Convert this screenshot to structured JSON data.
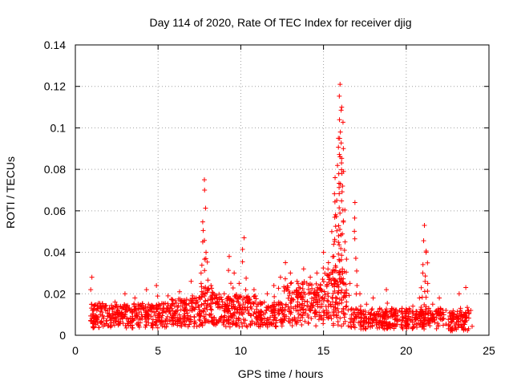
{
  "chart_data": {
    "type": "scatter",
    "title": "Day 114 of 2020, Rate Of TEC Index for receiver djig",
    "xlabel": "GPS time / hours",
    "ylabel": "ROTI / TECUs",
    "xlim": [
      0,
      25
    ],
    "ylim": [
      0,
      0.14
    ],
    "x_ticks": [
      0,
      5,
      10,
      15,
      20,
      25
    ],
    "x_tick_labels": [
      "0",
      "5",
      "10",
      "15",
      "20",
      "25"
    ],
    "y_ticks": [
      0,
      0.02,
      0.04,
      0.06,
      0.08,
      0.1,
      0.12,
      0.14
    ],
    "y_tick_labels": [
      "0",
      "0.02",
      "0.04",
      "0.06",
      "0.08",
      "0.1",
      "0.12",
      "0.14"
    ],
    "grid": true,
    "marker": "+",
    "series": [
      {
        "name": "ROTI",
        "color": "#ff0000",
        "x": [
          1.0,
          1.1,
          1.3,
          1.5,
          1.8,
          2.1,
          2.4,
          2.8,
          3.0,
          3.3,
          3.6,
          4.0,
          4.3,
          4.6,
          4.9,
          5.3,
          5.6,
          6.0,
          6.3,
          6.6,
          7.0,
          7.3,
          7.6,
          7.7,
          7.8,
          7.9,
          8.2,
          8.6,
          9.0,
          9.3,
          9.6,
          9.9,
          10.2,
          10.5,
          10.8,
          11.2,
          11.6,
          12.0,
          12.4,
          12.7,
          13.0,
          13.4,
          13.8,
          14.2,
          14.6,
          15.0,
          15.3,
          15.5,
          15.7,
          15.8,
          15.9,
          16.0,
          16.1,
          16.2,
          16.3,
          16.6,
          16.9,
          17.2,
          17.6,
          18.0,
          18.4,
          18.8,
          19.2,
          19.6,
          20.0,
          20.4,
          20.8,
          21.0,
          21.1,
          21.2,
          21.3,
          21.6,
          22.0,
          22.4,
          22.8,
          23.2,
          23.6,
          23.9
        ],
        "y": [
          0.028,
          0.008,
          0.012,
          0.01,
          0.014,
          0.009,
          0.016,
          0.011,
          0.02,
          0.012,
          0.018,
          0.01,
          0.022,
          0.013,
          0.024,
          0.011,
          0.019,
          0.014,
          0.021,
          0.012,
          0.026,
          0.018,
          0.03,
          0.045,
          0.075,
          0.04,
          0.024,
          0.015,
          0.02,
          0.038,
          0.03,
          0.025,
          0.047,
          0.018,
          0.022,
          0.015,
          0.02,
          0.024,
          0.028,
          0.035,
          0.03,
          0.026,
          0.032,
          0.028,
          0.03,
          0.04,
          0.035,
          0.05,
          0.076,
          0.065,
          0.095,
          0.121,
          0.11,
          0.09,
          0.045,
          0.025,
          0.064,
          0.02,
          0.015,
          0.018,
          0.013,
          0.022,
          0.01,
          0.012,
          0.008,
          0.014,
          0.018,
          0.03,
          0.053,
          0.04,
          0.025,
          0.015,
          0.018,
          0.012,
          0.01,
          0.02,
          0.023,
          0.012
        ]
      }
    ],
    "band_segments": [
      {
        "start": 0.9,
        "end": 5.5,
        "level": 0.0095,
        "amplitude": 0.006
      },
      {
        "start": 5.5,
        "end": 7.5,
        "level": 0.011,
        "amplitude": 0.007
      },
      {
        "start": 7.5,
        "end": 8.4,
        "level": 0.014,
        "amplitude": 0.009
      },
      {
        "start": 8.4,
        "end": 11.0,
        "level": 0.012,
        "amplitude": 0.008
      },
      {
        "start": 11.0,
        "end": 12.5,
        "level": 0.01,
        "amplitude": 0.006
      },
      {
        "start": 12.5,
        "end": 15.0,
        "level": 0.016,
        "amplitude": 0.01
      },
      {
        "start": 15.0,
        "end": 16.4,
        "level": 0.02,
        "amplitude": 0.012
      },
      {
        "start": 16.6,
        "end": 19.5,
        "level": 0.008,
        "amplitude": 0.005
      },
      {
        "start": 19.7,
        "end": 22.3,
        "level": 0.008,
        "amplitude": 0.005
      },
      {
        "start": 22.5,
        "end": 23.9,
        "level": 0.007,
        "amplitude": 0.005
      }
    ]
  }
}
